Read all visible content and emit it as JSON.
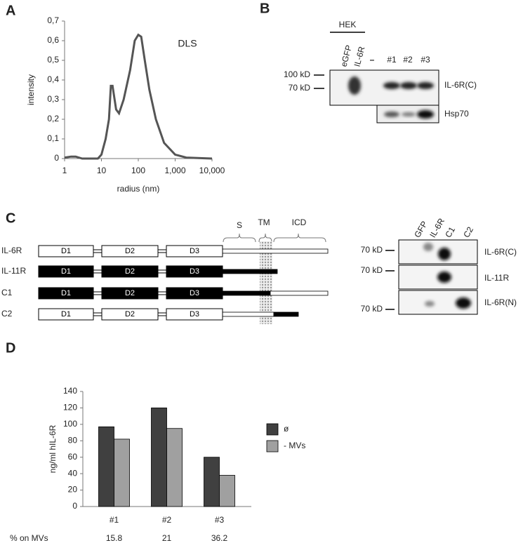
{
  "panel_labels": [
    "A",
    "B",
    "C",
    "D"
  ],
  "chart_data": [
    {
      "type": "line",
      "title": "DLS",
      "x_label": "radius (nm)",
      "y_label": "intensity",
      "log_x": true,
      "xlim": [
        1,
        10000
      ],
      "ylim": [
        0,
        0.7
      ],
      "xticks": [
        1,
        10,
        100,
        {
          "value": 1000,
          "label": "1,000"
        },
        {
          "value": 10000,
          "label": "10,000"
        }
      ],
      "yticks": [
        0,
        {
          "value": 0.1,
          "label": "0,1"
        },
        {
          "value": 0.2,
          "label": "0,2"
        },
        {
          "value": 0.3,
          "label": "0,3"
        },
        {
          "value": 0.4,
          "label": "0,4"
        },
        {
          "value": 0.5,
          "label": "0,5"
        },
        {
          "value": 0.6,
          "label": "0,6"
        },
        {
          "value": 0.7,
          "label": "0,7"
        }
      ],
      "x": [
        1,
        1.5,
        2,
        3,
        5,
        8,
        10,
        13,
        16,
        18,
        20,
        25,
        30,
        40,
        60,
        80,
        100,
        120,
        150,
        200,
        300,
        500,
        1000,
        2000,
        10000
      ],
      "series": [
        {
          "color": "#555555",
          "values": [
            0.005,
            0.01,
            0.01,
            0,
            0,
            0,
            0.02,
            0.1,
            0.2,
            0.37,
            0.37,
            0.25,
            0.23,
            0.3,
            0.45,
            0.6,
            0.63,
            0.62,
            0.5,
            0.35,
            0.2,
            0.08,
            0.02,
            0.005,
            0
          ]
        }
      ]
    },
    {
      "type": "bar",
      "y_label": "ng/ml hIL-6R",
      "categories": [
        "#1",
        "#2",
        "#3"
      ],
      "ylim": [
        0,
        140
      ],
      "yticks": [
        0,
        20,
        40,
        60,
        80,
        100,
        120,
        140
      ],
      "series": [
        {
          "name": "ø",
          "color": "#404040",
          "values": [
            97,
            120,
            60
          ]
        },
        {
          "name": "- MVs",
          "color": "#a0a0a0",
          "values": [
            82,
            95,
            38
          ]
        }
      ],
      "row_label": "% on MVs",
      "row_values": [
        15.8,
        21,
        36.2
      ]
    }
  ],
  "blot_b": {
    "group": "HEK",
    "lanes": [
      "eGFP",
      "IL-6R",
      "–",
      "#1",
      "#2",
      "#3"
    ],
    "markers": [
      "100 kD",
      "70 kD"
    ],
    "rows": [
      "IL-6R(C)",
      "Hsp70"
    ]
  },
  "diagram_c": {
    "regions": [
      "S",
      "TM",
      "ICD"
    ],
    "constructs": [
      "IL-6R",
      "IL-11R",
      "C1",
      "C2"
    ],
    "domains": [
      "D1",
      "D2",
      "D3"
    ]
  },
  "blot_c": {
    "lanes": [
      "GFP",
      "IL-6R",
      "C1",
      "C2"
    ],
    "markers": [
      "70 kD",
      "70 kD",
      "70 kD"
    ],
    "rows": [
      "IL-6R(C)",
      "IL-11R",
      "IL-6R(N)"
    ]
  }
}
